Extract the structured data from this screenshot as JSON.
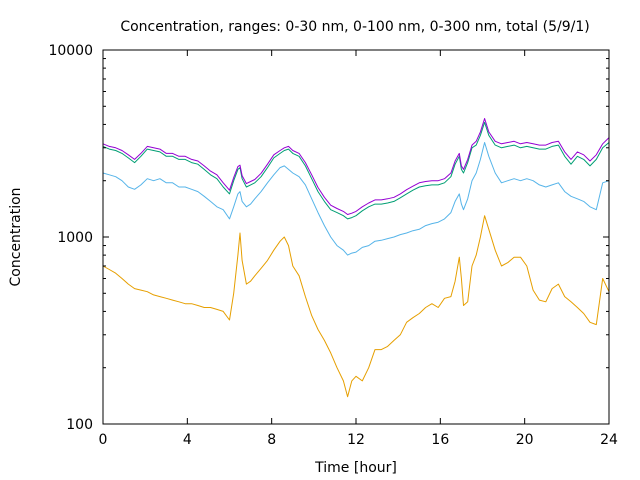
{
  "chart_data": {
    "type": "line",
    "title": "Concentration, ranges: 0-30 nm, 0-100 nm, 0-300 nm, total (5/9/1)",
    "xlabel": "Time [hour]",
    "ylabel": "Concentration",
    "xlim": [
      0,
      24
    ],
    "ylim": [
      100,
      10000
    ],
    "y_scale": "log",
    "grid": false,
    "x_ticks": [
      0,
      4,
      8,
      12,
      16,
      20,
      24
    ],
    "x_tick_labels": [
      "0",
      "4",
      "8",
      "12",
      "16",
      "20",
      "24"
    ],
    "y_ticks": [
      100,
      1000,
      10000
    ],
    "y_tick_labels": [
      "100",
      "1000",
      "10000"
    ],
    "series": [
      {
        "color": "#e69f00",
        "x": [
          0,
          0.3,
          0.6,
          0.9,
          1.2,
          1.5,
          1.8,
          2.1,
          2.4,
          2.7,
          3.0,
          3.3,
          3.6,
          3.9,
          4.2,
          4.5,
          4.8,
          5.1,
          5.4,
          5.7,
          6.0,
          6.2,
          6.4,
          6.5,
          6.6,
          6.8,
          7.0,
          7.2,
          7.5,
          7.8,
          8.1,
          8.4,
          8.6,
          8.8,
          9.0,
          9.3,
          9.6,
          9.9,
          10.2,
          10.5,
          10.8,
          11.1,
          11.4,
          11.6,
          11.8,
          12.0,
          12.3,
          12.6,
          12.9,
          13.2,
          13.5,
          13.8,
          14.1,
          14.4,
          14.7,
          15.0,
          15.3,
          15.6,
          15.9,
          16.2,
          16.5,
          16.7,
          16.9,
          17.0,
          17.1,
          17.3,
          17.5,
          17.7,
          17.9,
          18.1,
          18.3,
          18.6,
          18.9,
          19.2,
          19.5,
          19.8,
          20.1,
          20.4,
          20.7,
          21.0,
          21.3,
          21.6,
          21.9,
          22.2,
          22.5,
          22.8,
          23.1,
          23.4,
          23.7,
          24.0
        ],
        "values": [
          700,
          670,
          640,
          600,
          560,
          530,
          520,
          510,
          490,
          480,
          470,
          460,
          450,
          440,
          440,
          430,
          420,
          420,
          410,
          400,
          360,
          500,
          800,
          1050,
          750,
          560,
          580,
          620,
          680,
          750,
          850,
          950,
          1000,
          900,
          700,
          620,
          480,
          380,
          320,
          280,
          240,
          200,
          170,
          140,
          170,
          180,
          170,
          200,
          250,
          250,
          260,
          280,
          300,
          350,
          370,
          390,
          420,
          440,
          420,
          470,
          480,
          580,
          780,
          600,
          430,
          450,
          700,
          800,
          1000,
          1300,
          1100,
          850,
          700,
          730,
          780,
          780,
          700,
          520,
          460,
          450,
          530,
          560,
          480,
          450,
          420,
          390,
          350,
          340,
          600,
          510
        ]
      },
      {
        "color": "#56b4e9",
        "x": [
          0,
          0.3,
          0.6,
          0.9,
          1.2,
          1.5,
          1.8,
          2.1,
          2.4,
          2.7,
          3.0,
          3.3,
          3.6,
          3.9,
          4.2,
          4.5,
          4.8,
          5.1,
          5.4,
          5.7,
          6.0,
          6.2,
          6.4,
          6.5,
          6.6,
          6.8,
          7.0,
          7.2,
          7.5,
          7.8,
          8.1,
          8.4,
          8.6,
          8.8,
          9.0,
          9.3,
          9.6,
          9.9,
          10.2,
          10.5,
          10.8,
          11.1,
          11.4,
          11.6,
          11.8,
          12.0,
          12.3,
          12.6,
          12.9,
          13.2,
          13.5,
          13.8,
          14.1,
          14.4,
          14.7,
          15.0,
          15.3,
          15.6,
          15.9,
          16.2,
          16.5,
          16.7,
          16.9,
          17.0,
          17.1,
          17.3,
          17.5,
          17.7,
          17.9,
          18.1,
          18.3,
          18.6,
          18.9,
          19.2,
          19.5,
          19.8,
          20.1,
          20.4,
          20.7,
          21.0,
          21.3,
          21.6,
          21.9,
          22.2,
          22.5,
          22.8,
          23.1,
          23.4,
          23.7,
          24.0
        ],
        "values": [
          2200,
          2150,
          2100,
          2000,
          1850,
          1800,
          1900,
          2050,
          2000,
          2050,
          1950,
          1950,
          1850,
          1850,
          1800,
          1750,
          1650,
          1550,
          1450,
          1400,
          1250,
          1450,
          1700,
          1750,
          1550,
          1450,
          1500,
          1600,
          1750,
          1950,
          2150,
          2350,
          2400,
          2300,
          2200,
          2100,
          1900,
          1600,
          1350,
          1150,
          1000,
          900,
          850,
          800,
          820,
          830,
          880,
          900,
          950,
          960,
          980,
          1000,
          1030,
          1050,
          1080,
          1100,
          1150,
          1180,
          1200,
          1250,
          1350,
          1550,
          1700,
          1500,
          1400,
          1600,
          2000,
          2200,
          2600,
          3200,
          2700,
          2200,
          1950,
          2000,
          2050,
          2000,
          2050,
          2000,
          1900,
          1850,
          1900,
          1950,
          1750,
          1650,
          1600,
          1550,
          1450,
          1400,
          1950,
          2000
        ]
      },
      {
        "color": "#009e73",
        "x": [
          0,
          0.3,
          0.6,
          0.9,
          1.2,
          1.5,
          1.8,
          2.1,
          2.4,
          2.7,
          3.0,
          3.3,
          3.6,
          3.9,
          4.2,
          4.5,
          4.8,
          5.1,
          5.4,
          5.7,
          6.0,
          6.2,
          6.4,
          6.5,
          6.6,
          6.8,
          7.0,
          7.2,
          7.5,
          7.8,
          8.1,
          8.4,
          8.6,
          8.8,
          9.0,
          9.3,
          9.6,
          9.9,
          10.2,
          10.5,
          10.8,
          11.1,
          11.4,
          11.6,
          11.8,
          12.0,
          12.3,
          12.6,
          12.9,
          13.2,
          13.5,
          13.8,
          14.1,
          14.4,
          14.7,
          15.0,
          15.3,
          15.6,
          15.9,
          16.2,
          16.5,
          16.7,
          16.9,
          17.0,
          17.1,
          17.3,
          17.5,
          17.7,
          17.9,
          18.1,
          18.3,
          18.6,
          18.9,
          19.2,
          19.5,
          19.8,
          20.1,
          20.4,
          20.7,
          21.0,
          21.3,
          21.6,
          21.9,
          22.2,
          22.5,
          22.8,
          23.1,
          23.4,
          23.7,
          24.0
        ],
        "values": [
          3050,
          2950,
          2900,
          2800,
          2650,
          2500,
          2700,
          2950,
          2900,
          2850,
          2700,
          2700,
          2600,
          2600,
          2500,
          2450,
          2300,
          2150,
          2050,
          1850,
          1700,
          2000,
          2300,
          2350,
          2050,
          1850,
          1900,
          1950,
          2100,
          2350,
          2650,
          2800,
          2900,
          2950,
          2800,
          2700,
          2400,
          2050,
          1750,
          1550,
          1400,
          1350,
          1300,
          1250,
          1270,
          1300,
          1380,
          1450,
          1500,
          1500,
          1520,
          1550,
          1620,
          1700,
          1780,
          1850,
          1880,
          1900,
          1900,
          1950,
          2100,
          2450,
          2700,
          2300,
          2200,
          2500,
          3000,
          3100,
          3500,
          4100,
          3500,
          3100,
          3000,
          3050,
          3100,
          3000,
          3050,
          3000,
          2950,
          2950,
          3050,
          3100,
          2700,
          2450,
          2700,
          2600,
          2400,
          2600,
          3000,
          3200
        ]
      },
      {
        "color": "#9400d3",
        "x": [
          0,
          0.3,
          0.6,
          0.9,
          1.2,
          1.5,
          1.8,
          2.1,
          2.4,
          2.7,
          3.0,
          3.3,
          3.6,
          3.9,
          4.2,
          4.5,
          4.8,
          5.1,
          5.4,
          5.7,
          6.0,
          6.2,
          6.4,
          6.5,
          6.6,
          6.8,
          7.0,
          7.2,
          7.5,
          7.8,
          8.1,
          8.4,
          8.6,
          8.8,
          9.0,
          9.3,
          9.6,
          9.9,
          10.2,
          10.5,
          10.8,
          11.1,
          11.4,
          11.6,
          11.8,
          12.0,
          12.3,
          12.6,
          12.9,
          13.2,
          13.5,
          13.8,
          14.1,
          14.4,
          14.7,
          15.0,
          15.3,
          15.6,
          15.9,
          16.2,
          16.5,
          16.7,
          16.9,
          17.0,
          17.1,
          17.3,
          17.5,
          17.7,
          17.9,
          18.1,
          18.3,
          18.6,
          18.9,
          19.2,
          19.5,
          19.8,
          20.1,
          20.4,
          20.7,
          21.0,
          21.3,
          21.6,
          21.9,
          22.2,
          22.5,
          22.8,
          23.1,
          23.4,
          23.7,
          24.0
        ],
        "values": [
          3150,
          3050,
          3000,
          2900,
          2750,
          2600,
          2800,
          3050,
          3000,
          2950,
          2800,
          2800,
          2700,
          2700,
          2600,
          2550,
          2400,
          2250,
          2150,
          1950,
          1780,
          2080,
          2380,
          2420,
          2130,
          1930,
          1980,
          2030,
          2190,
          2450,
          2750,
          2900,
          3000,
          3050,
          2900,
          2800,
          2500,
          2150,
          1840,
          1630,
          1480,
          1420,
          1370,
          1320,
          1340,
          1370,
          1450,
          1520,
          1580,
          1580,
          1600,
          1630,
          1700,
          1790,
          1870,
          1950,
          1980,
          2000,
          2000,
          2050,
          2200,
          2550,
          2800,
          2400,
          2300,
          2600,
          3100,
          3250,
          3650,
          4300,
          3650,
          3250,
          3150,
          3200,
          3250,
          3150,
          3200,
          3150,
          3100,
          3100,
          3200,
          3250,
          2850,
          2600,
          2850,
          2750,
          2550,
          2750,
          3150,
          3400
        ]
      }
    ]
  }
}
